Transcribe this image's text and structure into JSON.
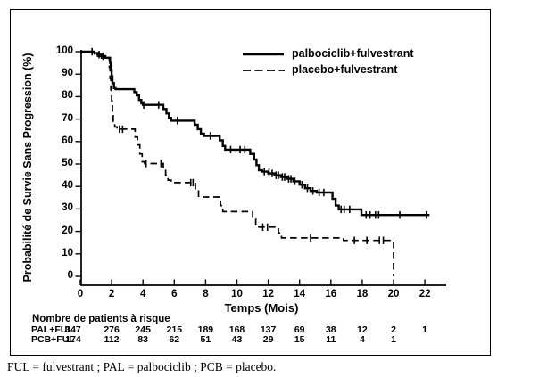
{
  "figure": {
    "footnote": "FUL = fulvestrant ; PAL = palbociclib ; PCB = placebo."
  },
  "chart_data": {
    "type": "line",
    "subtype": "kaplan-meier-step-curve",
    "xlabel": "Temps (Mois)",
    "ylabel": "Probabilité de Survie Sans Progression (%)",
    "xlim": [
      0,
      23.4
    ],
    "ylim": [
      0,
      100
    ],
    "x_ticks": [
      0,
      2,
      4,
      6,
      8,
      10,
      12,
      14,
      16,
      18,
      20,
      22
    ],
    "y_ticks": [
      100,
      90,
      80,
      70,
      60,
      50,
      40,
      30,
      20,
      10,
      0
    ],
    "grid": false,
    "legend_position": "top-right-inside",
    "line_color": "#000000",
    "series": [
      {
        "name": "palbociclib+fulvestrant",
        "line": "solid",
        "color": "#000000",
        "points": [
          [
            0,
            100
          ],
          [
            0.9,
            100
          ],
          [
            0.9,
            99.4
          ],
          [
            1.1,
            99.4
          ],
          [
            1.1,
            98.7
          ],
          [
            1.35,
            98.7
          ],
          [
            1.35,
            98
          ],
          [
            1.6,
            98
          ],
          [
            1.6,
            97.3
          ],
          [
            1.9,
            97.3
          ],
          [
            1.9,
            95
          ],
          [
            1.95,
            95
          ],
          [
            1.95,
            92
          ],
          [
            2.0,
            92
          ],
          [
            2.0,
            89
          ],
          [
            2.05,
            89
          ],
          [
            2.05,
            86
          ],
          [
            2.15,
            86
          ],
          [
            2.15,
            83.8
          ],
          [
            2.25,
            83.8
          ],
          [
            2.25,
            83.3
          ],
          [
            3.45,
            83.3
          ],
          [
            3.45,
            82
          ],
          [
            3.6,
            82
          ],
          [
            3.6,
            80.5
          ],
          [
            3.75,
            80.5
          ],
          [
            3.75,
            78.5
          ],
          [
            3.9,
            78.5
          ],
          [
            3.9,
            77
          ],
          [
            4.0,
            77
          ],
          [
            4.0,
            76.3
          ],
          [
            5.3,
            76.3
          ],
          [
            5.3,
            74.5
          ],
          [
            5.5,
            74.5
          ],
          [
            5.5,
            72.5
          ],
          [
            5.65,
            72.5
          ],
          [
            5.65,
            70.5
          ],
          [
            5.8,
            70.5
          ],
          [
            5.8,
            69.3
          ],
          [
            7.3,
            69.3
          ],
          [
            7.3,
            67.5
          ],
          [
            7.5,
            67.5
          ],
          [
            7.5,
            65.5
          ],
          [
            7.7,
            65.5
          ],
          [
            7.7,
            63.5
          ],
          [
            7.9,
            63.5
          ],
          [
            7.9,
            62.5
          ],
          [
            8.9,
            62.5
          ],
          [
            8.9,
            60.5
          ],
          [
            9.1,
            60.5
          ],
          [
            9.1,
            58
          ],
          [
            9.25,
            58
          ],
          [
            9.25,
            56.4
          ],
          [
            10.85,
            56.4
          ],
          [
            10.85,
            54.5
          ],
          [
            11.1,
            54.5
          ],
          [
            11.1,
            52
          ],
          [
            11.25,
            52
          ],
          [
            11.25,
            49.5
          ],
          [
            11.4,
            49.5
          ],
          [
            11.4,
            47.2
          ],
          [
            11.6,
            47.2
          ],
          [
            11.6,
            46.6
          ],
          [
            12.0,
            46.6
          ],
          [
            12.0,
            45.8
          ],
          [
            12.4,
            45.8
          ],
          [
            12.4,
            45
          ],
          [
            12.8,
            45
          ],
          [
            12.8,
            44.2
          ],
          [
            13.2,
            44.2
          ],
          [
            13.2,
            43.4
          ],
          [
            13.6,
            43.4
          ],
          [
            13.6,
            42.3
          ],
          [
            14.0,
            42.3
          ],
          [
            14.0,
            40.8
          ],
          [
            14.35,
            40.8
          ],
          [
            14.35,
            39.2
          ],
          [
            14.7,
            39.2
          ],
          [
            14.7,
            38
          ],
          [
            15.1,
            38
          ],
          [
            15.1,
            37.3
          ],
          [
            16.1,
            37.3
          ],
          [
            16.1,
            34.5
          ],
          [
            16.3,
            34.5
          ],
          [
            16.3,
            31.5
          ],
          [
            16.5,
            31.5
          ],
          [
            16.5,
            29.8
          ],
          [
            17.95,
            29.8
          ],
          [
            17.95,
            27.3
          ],
          [
            22.3,
            27.3
          ]
        ],
        "censors": [
          [
            0.75,
            100
          ],
          [
            1.2,
            98.7
          ],
          [
            1.45,
            98
          ],
          [
            4.05,
            76.3
          ],
          [
            5.0,
            76.3
          ],
          [
            6.2,
            69.3
          ],
          [
            8.3,
            62.5
          ],
          [
            9.6,
            56.4
          ],
          [
            10.2,
            56.4
          ],
          [
            10.5,
            56.4
          ],
          [
            11.75,
            46.6
          ],
          [
            12.05,
            46.6
          ],
          [
            12.25,
            45.8
          ],
          [
            12.5,
            45
          ],
          [
            12.65,
            45
          ],
          [
            12.9,
            44.2
          ],
          [
            13.05,
            44.2
          ],
          [
            13.3,
            43.4
          ],
          [
            13.45,
            43.4
          ],
          [
            13.7,
            42.3
          ],
          [
            14.15,
            40.8
          ],
          [
            14.5,
            39.2
          ],
          [
            14.85,
            38
          ],
          [
            15.25,
            37.3
          ],
          [
            15.55,
            37.3
          ],
          [
            16.65,
            29.8
          ],
          [
            16.85,
            29.8
          ],
          [
            17.2,
            29.8
          ],
          [
            18.25,
            27.3
          ],
          [
            18.5,
            27.3
          ],
          [
            18.85,
            27.3
          ],
          [
            19.05,
            27.3
          ],
          [
            20.4,
            27.3
          ],
          [
            22.1,
            27.3
          ]
        ]
      },
      {
        "name": "placebo+fulvestrant",
        "line": "dashed",
        "color": "#000000",
        "points": [
          [
            0,
            100
          ],
          [
            0.9,
            100
          ],
          [
            0.9,
            99
          ],
          [
            1.1,
            99
          ],
          [
            1.1,
            98
          ],
          [
            1.35,
            98
          ],
          [
            1.35,
            97.2
          ],
          [
            1.85,
            97.2
          ],
          [
            1.85,
            93
          ],
          [
            1.9,
            93
          ],
          [
            1.9,
            88
          ],
          [
            1.95,
            88
          ],
          [
            1.95,
            83
          ],
          [
            2.0,
            83
          ],
          [
            2.0,
            78
          ],
          [
            2.05,
            78
          ],
          [
            2.05,
            73
          ],
          [
            2.1,
            73
          ],
          [
            2.1,
            69
          ],
          [
            2.2,
            69
          ],
          [
            2.2,
            66.5
          ],
          [
            2.35,
            66.5
          ],
          [
            2.35,
            65.5
          ],
          [
            3.5,
            65.5
          ],
          [
            3.5,
            62
          ],
          [
            3.65,
            62
          ],
          [
            3.65,
            58.5
          ],
          [
            3.8,
            58.5
          ],
          [
            3.8,
            54.5
          ],
          [
            3.95,
            54.5
          ],
          [
            3.95,
            51
          ],
          [
            4.1,
            51
          ],
          [
            4.1,
            50.2
          ],
          [
            5.3,
            50.2
          ],
          [
            5.3,
            47.5
          ],
          [
            5.45,
            47.5
          ],
          [
            5.45,
            45
          ],
          [
            5.6,
            45
          ],
          [
            5.6,
            42.8
          ],
          [
            5.8,
            42.8
          ],
          [
            5.8,
            41.7
          ],
          [
            7.35,
            41.7
          ],
          [
            7.35,
            38.5
          ],
          [
            7.55,
            38.5
          ],
          [
            7.55,
            35.3
          ],
          [
            8.95,
            35.3
          ],
          [
            8.95,
            31.5
          ],
          [
            9.1,
            31.5
          ],
          [
            9.1,
            28.8
          ],
          [
            11.0,
            28.8
          ],
          [
            11.0,
            25.5
          ],
          [
            11.2,
            25.5
          ],
          [
            11.2,
            21.9
          ],
          [
            12.65,
            21.9
          ],
          [
            12.65,
            19.3
          ],
          [
            12.85,
            19.3
          ],
          [
            12.85,
            17.1
          ],
          [
            16.8,
            17.1
          ],
          [
            16.8,
            16
          ],
          [
            20.0,
            16
          ],
          [
            20.0,
            0
          ]
        ],
        "censors": [
          [
            2.5,
            65.5
          ],
          [
            2.7,
            65.5
          ],
          [
            4.2,
            50.2
          ],
          [
            5.15,
            50.2
          ],
          [
            7.05,
            41.7
          ],
          [
            7.2,
            41.7
          ],
          [
            11.65,
            21.9
          ],
          [
            11.95,
            21.9
          ],
          [
            14.7,
            17.1
          ],
          [
            17.5,
            16
          ],
          [
            18.3,
            16
          ],
          [
            19.1,
            16
          ],
          [
            19.35,
            16
          ]
        ]
      }
    ],
    "risk_table": {
      "title": "Nombre de patients à risque",
      "months": [
        0,
        2,
        4,
        6,
        8,
        10,
        12,
        14,
        16,
        18,
        20,
        22
      ],
      "rows": [
        {
          "label": "PAL+FUL",
          "counts": [
            347,
            276,
            245,
            215,
            189,
            168,
            137,
            69,
            38,
            12,
            2,
            1
          ]
        },
        {
          "label": "PCB+FUL",
          "counts": [
            174,
            112,
            83,
            62,
            51,
            43,
            29,
            15,
            11,
            4,
            1
          ]
        }
      ]
    }
  }
}
